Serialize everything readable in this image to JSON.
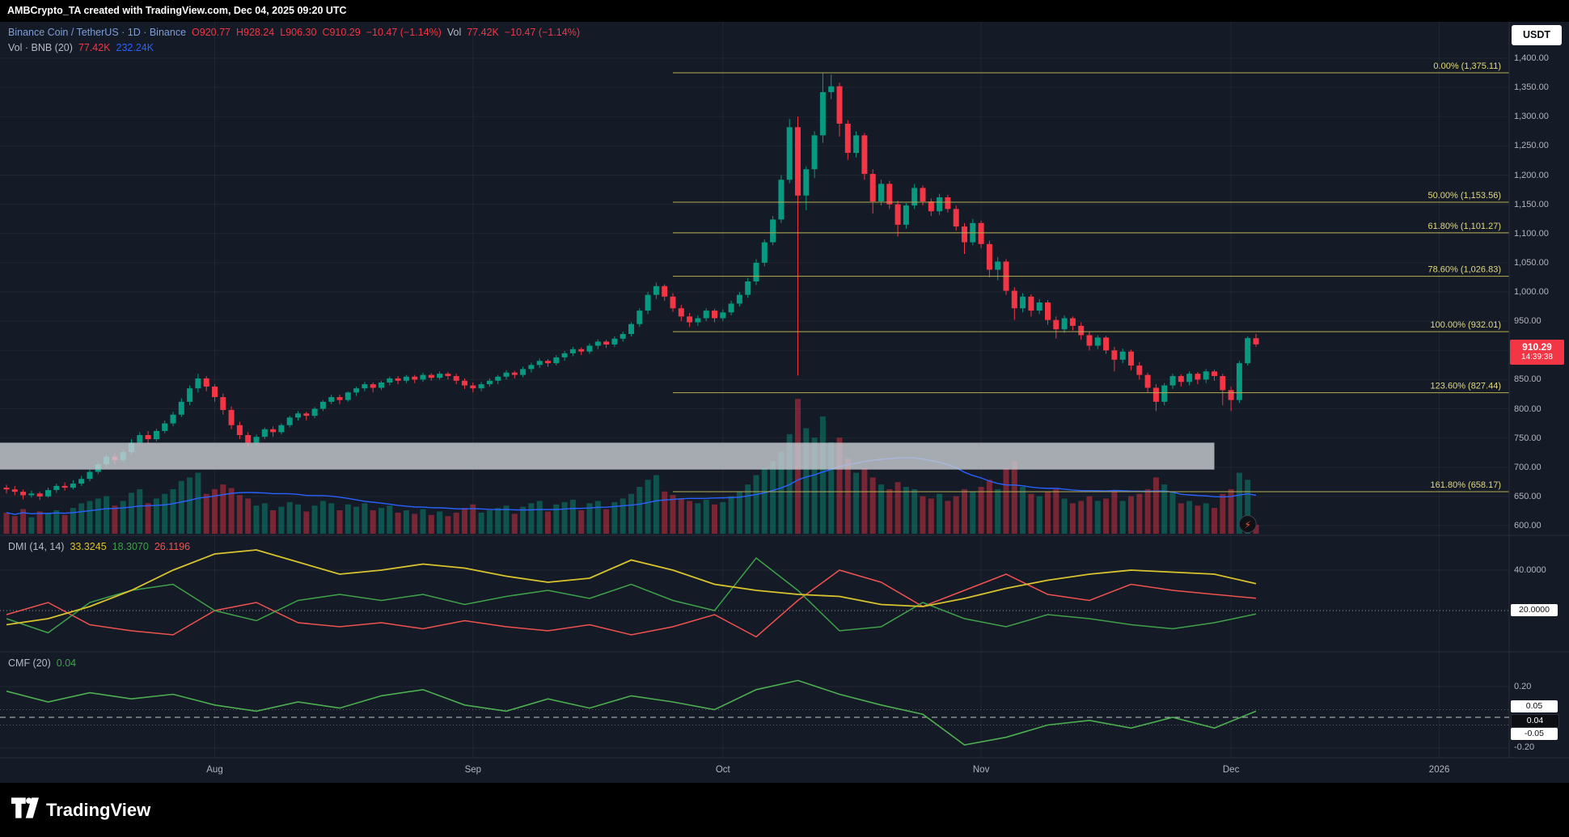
{
  "topbar": {
    "attribution": "AMBCrypto_TA created with TradingView.com, Dec 04, 2025 09:20 UTC"
  },
  "header": {
    "symbol": "Binance Coin / TetherUS · 1D · Binance",
    "o": "O920.77",
    "h": "H928.24",
    "l": "L906.30",
    "c": "C910.29",
    "change": "−10.47 (−1.14%)",
    "vol_label": "Vol",
    "vol_value": "77.42K",
    "vol_change": "−10.47 (−1.14%)",
    "currency": "USDT"
  },
  "legend_vol": {
    "label": "Vol · BNB (20)",
    "value": "77.42K",
    "ma": "232.24K"
  },
  "legend_dmi": {
    "title": "DMI (14, 14)",
    "adx": "33.3245",
    "plus_di": "18.3070",
    "minus_di": "26.1196"
  },
  "legend_cmf": {
    "title": "CMF (20)",
    "value": "0.04"
  },
  "price_badge": {
    "price": "910.29",
    "countdown": "14:39:38"
  },
  "axis": {
    "price_ticks": [
      {
        "label": "1,400.00",
        "value": 1400
      },
      {
        "label": "1,350.00",
        "value": 1350
      },
      {
        "label": "1,300.00",
        "value": 1300
      },
      {
        "label": "1,250.00",
        "value": 1250
      },
      {
        "label": "1,200.00",
        "value": 1200
      },
      {
        "label": "1,150.00",
        "value": 1150
      },
      {
        "label": "1,100.00",
        "value": 1100
      },
      {
        "label": "1,050.00",
        "value": 1050
      },
      {
        "label": "1,000.00",
        "value": 1000
      },
      {
        "label": "950.00",
        "value": 950
      },
      {
        "label": "900.00",
        "value": 900
      },
      {
        "label": "850.00",
        "value": 850
      },
      {
        "label": "800.00",
        "value": 800
      },
      {
        "label": "750.00",
        "value": 750
      },
      {
        "label": "700.00",
        "value": 700
      },
      {
        "label": "650.00",
        "value": 650
      },
      {
        "label": "600.00",
        "value": 600
      }
    ],
    "dmi_ticks": [
      {
        "label": "40.0000",
        "value": 40
      }
    ],
    "dmi_badge": {
      "label": "20.0000",
      "value": 20
    },
    "cmf_ticks": [
      {
        "label": "0.20",
        "value": 0.2
      },
      {
        "label": "-0.20",
        "value": -0.2
      }
    ],
    "cmf_badges": [
      {
        "label": "0.05",
        "value": 0.05,
        "style": "light"
      },
      {
        "label": "0.04",
        "value": 0.04,
        "style": "dark"
      },
      {
        "label": "-0.05",
        "value": -0.05,
        "style": "light"
      }
    ]
  },
  "time_labels": [
    {
      "label": "Aug",
      "i": 25
    },
    {
      "label": "Sep",
      "i": 56
    },
    {
      "label": "Oct",
      "i": 86
    },
    {
      "label": "Nov",
      "i": 117
    },
    {
      "label": "Dec",
      "i": 147
    },
    {
      "label": "2026",
      "i": 172
    }
  ],
  "footer": {
    "brand": "TradingView"
  },
  "colors": {
    "up": "#089981",
    "down": "#f23645",
    "vol_ma": "#2962ff",
    "fib": "#e3da7e",
    "fib_line": "#b9ae4e",
    "adx": "#d9c32e",
    "plus_di": "#3fa24a",
    "minus_di": "#ef5350",
    "cmf": "#4caf50",
    "badge": "#f23645",
    "bg": "#141a26"
  },
  "chart_data": {
    "type": "candlestick",
    "symbol": "BNB/USDT",
    "timeframe": "1D",
    "price_range": [
      600,
      1400
    ],
    "volume_unit": "K",
    "fib_start_index": 80,
    "zone": {
      "price_top": 742,
      "price_bottom": 696,
      "end_index": 145
    },
    "fib_levels": [
      {
        "label": "0.00% (1,375.11)",
        "value": 1375.11
      },
      {
        "label": "50.00% (1,153.56)",
        "value": 1153.56
      },
      {
        "label": "61.80% (1,101.27)",
        "value": 1101.27
      },
      {
        "label": "78.60% (1,026.83)",
        "value": 1026.83
      },
      {
        "label": "100.00% (932.01)",
        "value": 932.01
      },
      {
        "label": "123.60% (827.44)",
        "value": 827.44
      },
      {
        "label": "161.80% (658.17)",
        "value": 658.17
      }
    ],
    "candles": [
      [
        665,
        670,
        655,
        662,
        180
      ],
      [
        662,
        668,
        652,
        658,
        150
      ],
      [
        658,
        662,
        645,
        652,
        210
      ],
      [
        652,
        660,
        648,
        655,
        140
      ],
      [
        655,
        658,
        644,
        650,
        190
      ],
      [
        650,
        665,
        648,
        661,
        170
      ],
      [
        661,
        672,
        656,
        668,
        200
      ],
      [
        668,
        674,
        660,
        665,
        160
      ],
      [
        665,
        678,
        662,
        672,
        220
      ],
      [
        672,
        685,
        668,
        680,
        260
      ],
      [
        680,
        696,
        676,
        692,
        280
      ],
      [
        692,
        710,
        688,
        705,
        300
      ],
      [
        705,
        722,
        700,
        718,
        320
      ],
      [
        718,
        724,
        705,
        712,
        240
      ],
      [
        712,
        730,
        708,
        726,
        280
      ],
      [
        726,
        748,
        722,
        742,
        350
      ],
      [
        742,
        760,
        738,
        755,
        380
      ],
      [
        755,
        762,
        740,
        748,
        260
      ],
      [
        748,
        766,
        744,
        762,
        300
      ],
      [
        762,
        780,
        758,
        775,
        340
      ],
      [
        775,
        795,
        770,
        790,
        380
      ],
      [
        790,
        818,
        786,
        812,
        450
      ],
      [
        812,
        840,
        806,
        835,
        480
      ],
      [
        835,
        860,
        828,
        852,
        520
      ],
      [
        852,
        856,
        830,
        838,
        340
      ],
      [
        838,
        842,
        812,
        820,
        380
      ],
      [
        820,
        826,
        790,
        798,
        420
      ],
      [
        798,
        804,
        765,
        772,
        390
      ],
      [
        772,
        778,
        748,
        755,
        330
      ],
      [
        755,
        760,
        735,
        742,
        300
      ],
      [
        742,
        756,
        738,
        752,
        240
      ],
      [
        752,
        768,
        748,
        765,
        260
      ],
      [
        765,
        770,
        752,
        760,
        200
      ],
      [
        760,
        775,
        756,
        772,
        230
      ],
      [
        772,
        788,
        768,
        785,
        270
      ],
      [
        785,
        796,
        780,
        792,
        250
      ],
      [
        792,
        795,
        780,
        788,
        190
      ],
      [
        788,
        803,
        784,
        800,
        240
      ],
      [
        800,
        815,
        796,
        812,
        280
      ],
      [
        812,
        824,
        808,
        820,
        260
      ],
      [
        820,
        824,
        808,
        815,
        200
      ],
      [
        815,
        830,
        812,
        828,
        250
      ],
      [
        828,
        838,
        822,
        835,
        230
      ],
      [
        835,
        846,
        830,
        842,
        260
      ],
      [
        842,
        845,
        828,
        836,
        200
      ],
      [
        836,
        848,
        832,
        845,
        220
      ],
      [
        845,
        855,
        840,
        852,
        240
      ],
      [
        852,
        856,
        842,
        848,
        180
      ],
      [
        848,
        858,
        844,
        855,
        200
      ],
      [
        855,
        858,
        844,
        850,
        170
      ],
      [
        850,
        862,
        846,
        858,
        210
      ],
      [
        858,
        861,
        848,
        853,
        160
      ],
      [
        853,
        864,
        850,
        860,
        190
      ],
      [
        860,
        863,
        850,
        856,
        150
      ],
      [
        856,
        860,
        842,
        848,
        180
      ],
      [
        848,
        852,
        834,
        840,
        220
      ],
      [
        840,
        845,
        828,
        835,
        250
      ],
      [
        835,
        846,
        830,
        842,
        180
      ],
      [
        842,
        852,
        838,
        848,
        200
      ],
      [
        848,
        858,
        842,
        855,
        220
      ],
      [
        855,
        866,
        850,
        862,
        240
      ],
      [
        862,
        865,
        852,
        858,
        170
      ],
      [
        858,
        872,
        854,
        868,
        230
      ],
      [
        868,
        879,
        862,
        875,
        260
      ],
      [
        875,
        886,
        870,
        882,
        280
      ],
      [
        882,
        885,
        872,
        878,
        190
      ],
      [
        878,
        892,
        874,
        888,
        250
      ],
      [
        888,
        899,
        882,
        895,
        270
      ],
      [
        895,
        906,
        890,
        902,
        290
      ],
      [
        902,
        905,
        892,
        898,
        200
      ],
      [
        898,
        912,
        894,
        908,
        260
      ],
      [
        908,
        919,
        902,
        915,
        280
      ],
      [
        915,
        918,
        904,
        910,
        210
      ],
      [
        910,
        924,
        906,
        920,
        270
      ],
      [
        920,
        932,
        915,
        928,
        300
      ],
      [
        928,
        948,
        924,
        945,
        340
      ],
      [
        945,
        972,
        940,
        968,
        400
      ],
      [
        968,
        1000,
        962,
        995,
        460
      ],
      [
        995,
        1016,
        988,
        1010,
        500
      ],
      [
        1010,
        1013,
        985,
        992,
        360
      ],
      [
        992,
        998,
        966,
        972,
        330
      ],
      [
        972,
        978,
        950,
        958,
        300
      ],
      [
        958,
        964,
        940,
        948,
        280
      ],
      [
        948,
        960,
        942,
        955,
        260
      ],
      [
        955,
        972,
        950,
        968,
        290
      ],
      [
        968,
        971,
        948,
        955,
        250
      ],
      [
        955,
        970,
        950,
        965,
        270
      ],
      [
        965,
        985,
        960,
        980,
        320
      ],
      [
        980,
        1000,
        975,
        995,
        360
      ],
      [
        995,
        1024,
        990,
        1018,
        420
      ],
      [
        1018,
        1056,
        1012,
        1050,
        500
      ],
      [
        1050,
        1090,
        1044,
        1085,
        560
      ],
      [
        1085,
        1130,
        1080,
        1124,
        620
      ],
      [
        1124,
        1200,
        1118,
        1192,
        700
      ],
      [
        1192,
        1296,
        1186,
        1282,
        850
      ],
      [
        1282,
        1300,
        857,
        1165,
        1150
      ],
      [
        1165,
        1215,
        1140,
        1210,
        900
      ],
      [
        1210,
        1275,
        1195,
        1268,
        820
      ],
      [
        1268,
        1375.11,
        1255,
        1342,
        1000
      ],
      [
        1342,
        1372,
        1330,
        1352,
        780
      ],
      [
        1352,
        1358,
        1266,
        1288,
        820
      ],
      [
        1288,
        1294,
        1226,
        1238,
        640
      ],
      [
        1238,
        1275,
        1230,
        1268,
        520
      ],
      [
        1268,
        1272,
        1192,
        1202,
        560
      ],
      [
        1202,
        1210,
        1134,
        1155,
        480
      ],
      [
        1155,
        1192,
        1148,
        1185,
        420
      ],
      [
        1185,
        1190,
        1142,
        1150,
        380
      ],
      [
        1150,
        1156,
        1095,
        1115,
        440
      ],
      [
        1115,
        1152,
        1108,
        1148,
        400
      ],
      [
        1148,
        1185,
        1142,
        1178,
        380
      ],
      [
        1178,
        1182,
        1148,
        1155,
        320
      ],
      [
        1155,
        1160,
        1130,
        1138,
        300
      ],
      [
        1138,
        1168,
        1132,
        1162,
        340
      ],
      [
        1162,
        1166,
        1136,
        1142,
        280
      ],
      [
        1142,
        1148,
        1105,
        1112,
        320
      ],
      [
        1112,
        1118,
        1065,
        1085,
        380
      ],
      [
        1085,
        1125,
        1080,
        1118,
        360
      ],
      [
        1118,
        1122,
        1075,
        1082,
        400
      ],
      [
        1082,
        1088,
        1025,
        1038,
        460
      ],
      [
        1038,
        1060,
        1020,
        1052,
        380
      ],
      [
        1052,
        1056,
        995,
        1002,
        560
      ],
      [
        1002,
        1008,
        952,
        972,
        620
      ],
      [
        972,
        998,
        965,
        992,
        400
      ],
      [
        992,
        996,
        958,
        968,
        340
      ],
      [
        968,
        988,
        962,
        982,
        320
      ],
      [
        982,
        986,
        944,
        952,
        360
      ],
      [
        952,
        958,
        920,
        936,
        380
      ],
      [
        936,
        960,
        930,
        955,
        300
      ],
      [
        955,
        958,
        934,
        942,
        260
      ],
      [
        942,
        948,
        918,
        926,
        280
      ],
      [
        926,
        932,
        900,
        908,
        320
      ],
      [
        908,
        926,
        902,
        922,
        280
      ],
      [
        922,
        925,
        894,
        900,
        300
      ],
      [
        900,
        906,
        864,
        884,
        360
      ],
      [
        884,
        903,
        878,
        898,
        280
      ],
      [
        898,
        901,
        866,
        874,
        320
      ],
      [
        874,
        880,
        850,
        858,
        340
      ],
      [
        858,
        862,
        828,
        836,
        380
      ],
      [
        836,
        842,
        796,
        812,
        480
      ],
      [
        812,
        844,
        806,
        840,
        420
      ],
      [
        840,
        860,
        834,
        856,
        360
      ],
      [
        856,
        859,
        838,
        846,
        260
      ],
      [
        846,
        864,
        840,
        860,
        280
      ],
      [
        860,
        863,
        842,
        850,
        240
      ],
      [
        850,
        868,
        844,
        864,
        260
      ],
      [
        864,
        867,
        848,
        856,
        220
      ],
      [
        856,
        860,
        806,
        832,
        340
      ],
      [
        832,
        838,
        796,
        815,
        380
      ],
      [
        815,
        882,
        810,
        878,
        520
      ],
      [
        878,
        924,
        874,
        921,
        460
      ],
      [
        920.77,
        928.24,
        906.3,
        910.29,
        77
      ]
    ],
    "indicators": {
      "dmi": {
        "sample_step": 5,
        "adx": [
          13,
          16,
          22,
          30,
          40,
          48,
          50,
          44,
          38,
          40,
          43,
          41,
          37,
          34,
          36,
          45,
          40,
          33,
          30,
          28,
          27,
          23,
          22,
          26,
          31,
          35,
          38,
          40,
          39,
          38,
          33.3
        ],
        "plus_di": [
          16,
          9,
          24,
          30,
          33,
          20,
          15,
          25,
          28,
          25,
          28,
          23,
          27,
          30,
          26,
          33,
          25,
          20,
          46,
          30,
          10,
          12,
          24,
          16,
          12,
          18,
          16,
          13,
          11,
          14,
          18.3
        ],
        "minus_di": [
          18,
          24,
          13,
          10,
          8,
          20,
          24,
          14,
          12,
          14,
          11,
          15,
          12,
          10,
          13,
          8,
          12,
          18,
          7,
          25,
          40,
          34,
          22,
          30,
          38,
          28,
          25,
          33,
          30,
          28,
          26.1
        ]
      },
      "cmf": {
        "sample_step": 5,
        "values": [
          0.17,
          0.1,
          0.16,
          0.12,
          0.15,
          0.08,
          0.04,
          0.1,
          0.06,
          0.14,
          0.18,
          0.08,
          0.04,
          0.12,
          0.06,
          0.14,
          0.1,
          0.05,
          0.18,
          0.24,
          0.15,
          0.08,
          0.02,
          -0.18,
          -0.13,
          -0.05,
          -0.02,
          -0.07,
          0.0,
          -0.07,
          0.04
        ]
      }
    }
  }
}
